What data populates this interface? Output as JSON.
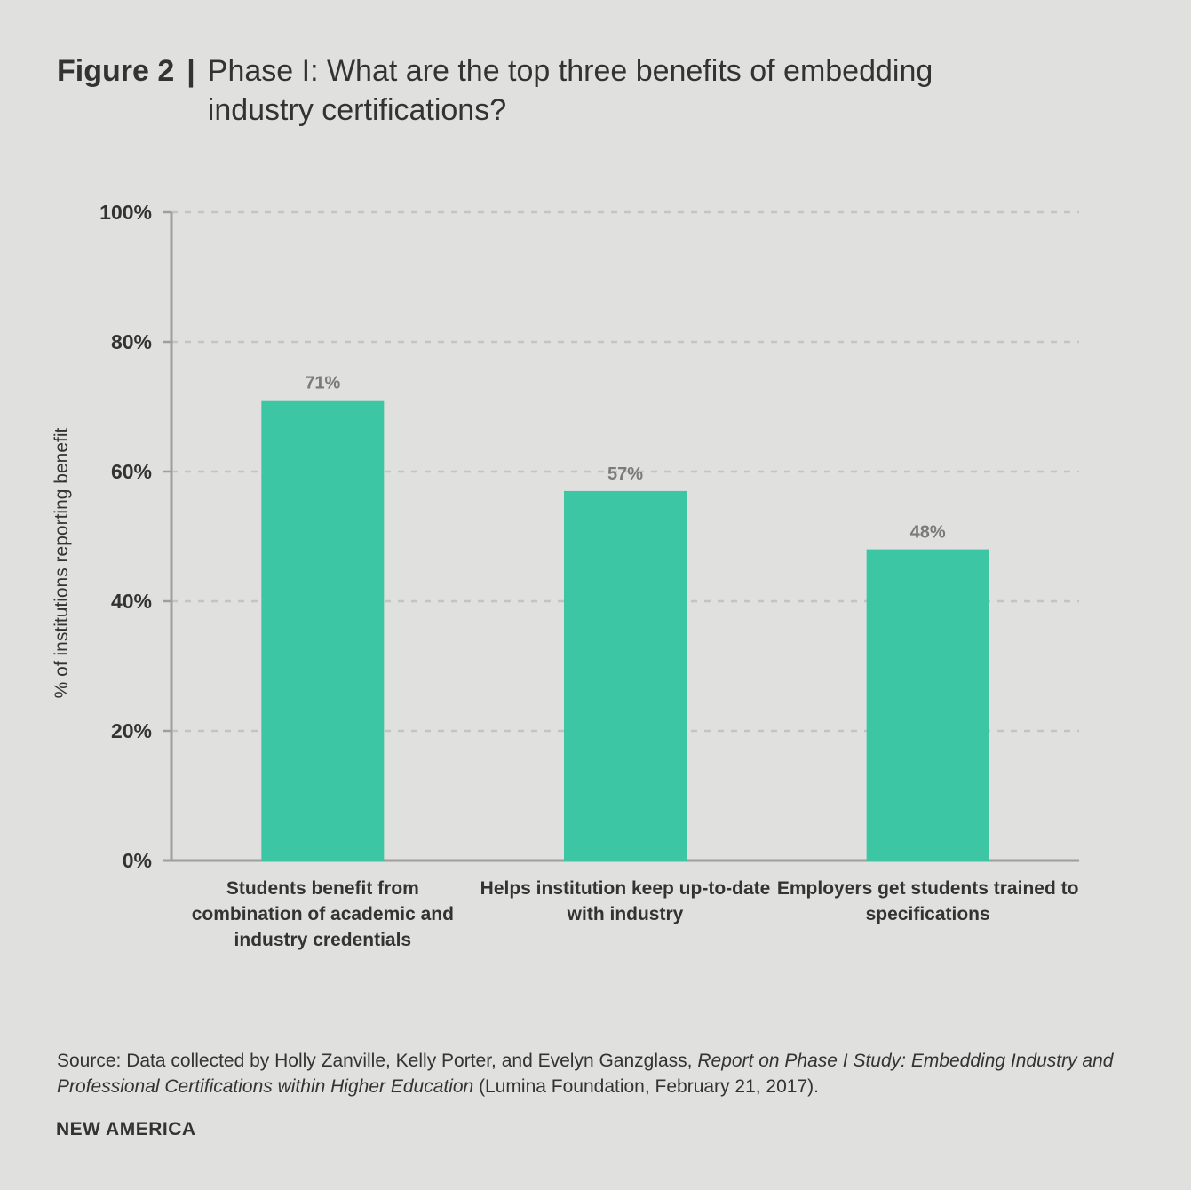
{
  "header": {
    "figure_label": "Figure 2",
    "separator": "|",
    "title": "Phase I: What are the top three benefits of embedding industry certifications?"
  },
  "chart_data": {
    "type": "bar",
    "title": "Phase I: What are the top three benefits of embedding industry certifications?",
    "categories": [
      "Students benefit from combination of academic and industry credentials",
      "Helps institution keep up-to-date with industry",
      "Employers get students trained to specifications"
    ],
    "values": [
      71,
      57,
      48
    ],
    "value_labels": [
      "71%",
      "57%",
      "48%"
    ],
    "xlabel": "",
    "ylabel": "% of institutions reporting benefit",
    "ylim": [
      0,
      100
    ],
    "yticks": [
      0,
      20,
      40,
      60,
      80,
      100
    ],
    "ytick_labels": [
      "0%",
      "20%",
      "40%",
      "60%",
      "80%",
      "100%"
    ],
    "grid": true,
    "bar_color": "#3cc6a4"
  },
  "source": {
    "prefix": "Source: Data collected by Holly Zanville, Kelly Porter, and Evelyn Ganzglass, ",
    "italic": "Report on Phase I Study: Embedding Industry and Professional Certifications within Higher Education",
    "suffix": " (Lumina Foundation, February 21, 2017)."
  },
  "brand": "NEW AMERICA"
}
